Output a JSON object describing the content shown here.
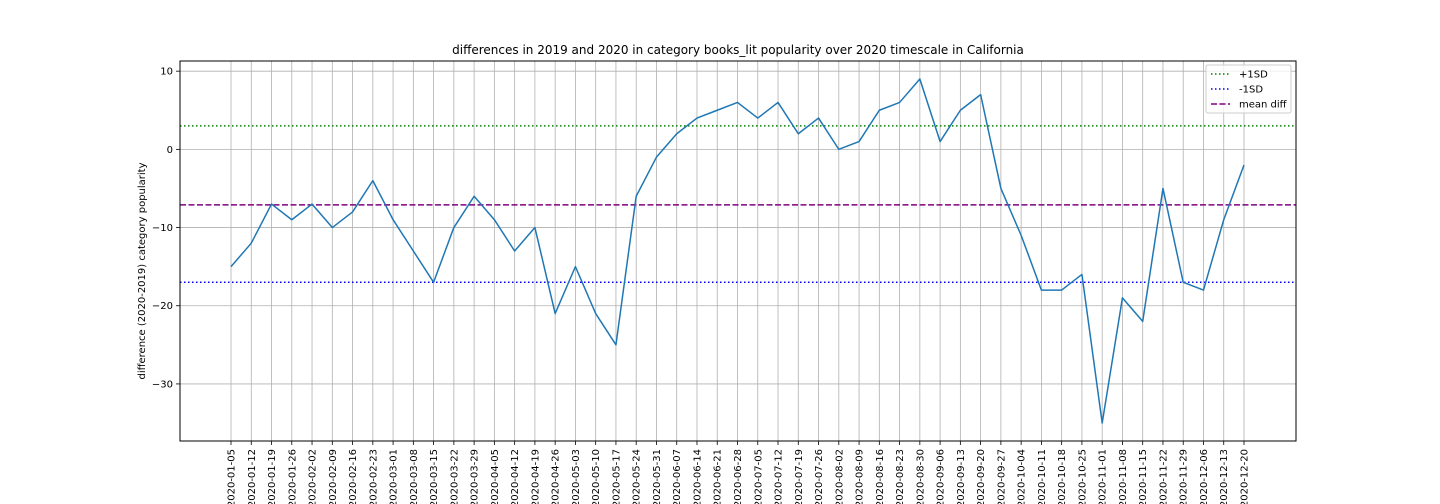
{
  "chart_data": {
    "type": "line",
    "title": "differences in 2019 and 2020 in category books_lit popularity over 2020 timescale in California",
    "xlabel": "",
    "ylabel": "difference (2020-2019) category popularity",
    "ylim": [
      -37.3,
      11.3
    ],
    "yticks": [
      10,
      0,
      -10,
      -20,
      -30
    ],
    "ytick_labels": [
      "10",
      "0",
      "−10",
      "−20",
      "−30"
    ],
    "grid": true,
    "legend_position": "top-right",
    "x": [
      "2020-01-05",
      "2020-01-12",
      "2020-01-19",
      "2020-01-26",
      "2020-02-02",
      "2020-02-09",
      "2020-02-16",
      "2020-02-23",
      "2020-03-01",
      "2020-03-08",
      "2020-03-15",
      "2020-03-22",
      "2020-03-29",
      "2020-04-05",
      "2020-04-12",
      "2020-04-19",
      "2020-04-26",
      "2020-05-03",
      "2020-05-10",
      "2020-05-17",
      "2020-05-24",
      "2020-05-31",
      "2020-06-07",
      "2020-06-14",
      "2020-06-21",
      "2020-06-28",
      "2020-07-05",
      "2020-07-12",
      "2020-07-19",
      "2020-07-26",
      "2020-08-02",
      "2020-08-09",
      "2020-08-16",
      "2020-08-23",
      "2020-08-30",
      "2020-09-06",
      "2020-09-13",
      "2020-09-20",
      "2020-09-27",
      "2020-10-04",
      "2020-10-11",
      "2020-10-18",
      "2020-10-25",
      "2020-11-01",
      "2020-11-08",
      "2020-11-15",
      "2020-11-22",
      "2020-11-29",
      "2020-12-06",
      "2020-12-13",
      "2020-12-20"
    ],
    "series": [
      {
        "values": [
          -15,
          -12,
          -7,
          -9,
          -7,
          -10,
          -8,
          -4,
          -9,
          -13,
          -17,
          -10,
          -6,
          -9,
          -13,
          -10,
          -21,
          -15,
          -21,
          -25,
          -6,
          -1,
          2,
          4,
          5,
          6,
          4,
          6,
          2,
          4,
          0,
          1,
          5,
          6,
          9,
          1,
          5,
          7,
          -5,
          -11,
          -18,
          -18,
          -16,
          -35,
          -19,
          -22,
          -5,
          -17,
          -18,
          -9,
          -2
        ],
        "color": "#1f77b4"
      }
    ],
    "reference_lines": [
      {
        "name": "+1SD",
        "value": 3,
        "color": "#008000",
        "style": "dotted"
      },
      {
        "name": "-1SD",
        "value": -17,
        "color": "#0000ff",
        "style": "dotted"
      },
      {
        "name": "mean diff",
        "value": -7.1,
        "color": "#800080",
        "style": "dashed"
      }
    ]
  }
}
